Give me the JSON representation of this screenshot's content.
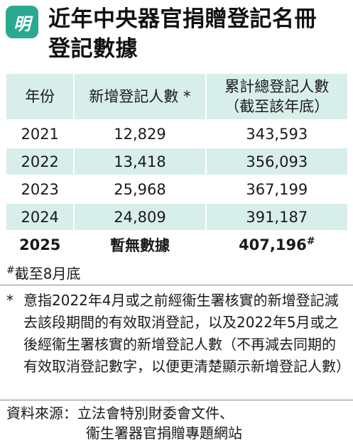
{
  "header": {
    "logo_text": "明",
    "title_line1": "近年中央器官捐贈登記名冊",
    "title_line2": "登記數據"
  },
  "table": {
    "headers": {
      "year": "年份",
      "new": "新增登記人數 *",
      "total_line1": "累計總登記人數",
      "total_line2": "（截至該年底）"
    },
    "rows": [
      {
        "year": "2021",
        "new": "12,829",
        "total": "343,593"
      },
      {
        "year": "2022",
        "new": "13,418",
        "total": "356,093"
      },
      {
        "year": "2023",
        "new": "25,968",
        "total": "367,199"
      },
      {
        "year": "2024",
        "new": "24,809",
        "total": "391,187"
      },
      {
        "year": "2025",
        "new": "暫無數據",
        "total": "407,196",
        "mark": "#"
      }
    ]
  },
  "footnote_hash": {
    "symbol": "#",
    "text": "截至8月底"
  },
  "footnote_star": {
    "symbol": "*",
    "text": "意指2022年4月或之前經衞生署核實的新增登記減去該段期間的有效取消登記，以及2022年5月或之後經衞生署核實的新增登記人數（不再減去同期的有效取消登記數字，以便更清楚顯示新增登記人數）"
  },
  "source": {
    "line1": "資料來源：立法會特別財委會文件、",
    "line2": "衞生署器官捐贈專題網站"
  },
  "colors": {
    "accent": "#2aa98e",
    "row_tint": "#d8eeeb"
  }
}
